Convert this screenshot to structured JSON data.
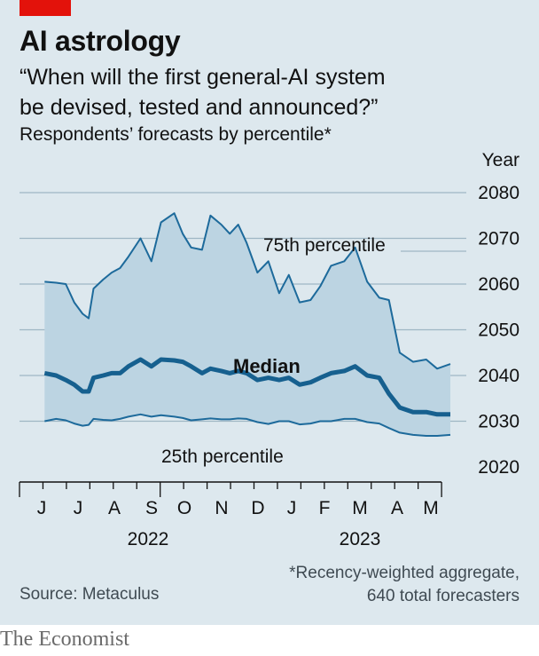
{
  "header": {
    "title": "AI astrology",
    "subtitle_line1": "“When will the first general-AI system",
    "subtitle_line2": "be devised, tested and announced?”",
    "note": "Respondents’ forecasts by percentile*",
    "unit": "Year"
  },
  "footer": {
    "source": "Source: Metaculus",
    "footnote_line1": "*Recency-weighted aggregate,",
    "footnote_line2": "640 total forecasters",
    "brand": "The Economist"
  },
  "colors": {
    "accent": "#e3120b",
    "panel": "#dde8ee",
    "band": "#bcd4e2",
    "line": "#1d6a9b",
    "median": "#16608f",
    "grid": "#9fb6c4"
  },
  "chart_data": {
    "type": "line",
    "title": "AI astrology",
    "ylabel": "Year",
    "ylim": [
      2020,
      2080
    ],
    "yticks": [
      2020,
      2030,
      2040,
      2050,
      2060,
      2070,
      2080
    ],
    "grid": true,
    "months": [
      "J",
      "J",
      "A",
      "S",
      "O",
      "N",
      "D",
      "J",
      "F",
      "M",
      "A",
      "M"
    ],
    "years": [
      "2022",
      "2023"
    ],
    "annotations": {
      "p75": "75th percentile",
      "median": "Median",
      "p25": "25th percentile"
    },
    "series": [
      {
        "name": "75th percentile",
        "points": [
          [
            0.12,
            2060.5
          ],
          [
            0.6,
            2060.3
          ],
          [
            1.0,
            2060.0
          ],
          [
            1.35,
            2056
          ],
          [
            1.7,
            2053.5
          ],
          [
            1.95,
            2052.5
          ],
          [
            2.15,
            2059
          ],
          [
            2.55,
            2061
          ],
          [
            2.9,
            2062.5
          ],
          [
            3.25,
            2063.5
          ],
          [
            3.6,
            2066
          ],
          [
            4.1,
            2070
          ],
          [
            4.55,
            2065
          ],
          [
            4.95,
            2073.5
          ],
          [
            5.5,
            2075.5
          ],
          [
            5.85,
            2071
          ],
          [
            6.2,
            2068
          ],
          [
            6.65,
            2067.5
          ],
          [
            7.0,
            2075
          ],
          [
            7.45,
            2073
          ],
          [
            7.8,
            2071
          ],
          [
            8.15,
            2073
          ],
          [
            8.5,
            2069
          ],
          [
            8.95,
            2062.5
          ],
          [
            9.4,
            2065
          ],
          [
            9.85,
            2058
          ],
          [
            10.25,
            2062
          ],
          [
            10.7,
            2056
          ],
          [
            11.15,
            2056.5
          ],
          [
            11.55,
            2059.5
          ],
          [
            12.0,
            2064
          ],
          [
            12.55,
            2065
          ],
          [
            13.0,
            2068
          ],
          [
            13.5,
            2060.5
          ],
          [
            14.0,
            2057
          ],
          [
            14.4,
            2056.5
          ],
          [
            14.85,
            2045
          ],
          [
            15.4,
            2043
          ],
          [
            15.95,
            2043.5
          ],
          [
            16.4,
            2041.5
          ],
          [
            16.95,
            2042.5
          ]
        ]
      },
      {
        "name": "Median",
        "points": [
          [
            0.12,
            2040.5
          ],
          [
            0.6,
            2040
          ],
          [
            1.0,
            2039
          ],
          [
            1.35,
            2038
          ],
          [
            1.7,
            2036.5
          ],
          [
            1.95,
            2036.5
          ],
          [
            2.15,
            2039.5
          ],
          [
            2.55,
            2040
          ],
          [
            2.9,
            2040.5
          ],
          [
            3.25,
            2040.5
          ],
          [
            3.6,
            2042
          ],
          [
            4.1,
            2043.5
          ],
          [
            4.55,
            2042
          ],
          [
            4.95,
            2043.5
          ],
          [
            5.5,
            2043.3
          ],
          [
            5.85,
            2043
          ],
          [
            6.2,
            2042
          ],
          [
            6.65,
            2040.5
          ],
          [
            7.0,
            2041.5
          ],
          [
            7.45,
            2041
          ],
          [
            7.8,
            2040.5
          ],
          [
            8.15,
            2041
          ],
          [
            8.5,
            2040.5
          ],
          [
            8.95,
            2039
          ],
          [
            9.4,
            2039.5
          ],
          [
            9.85,
            2039
          ],
          [
            10.25,
            2039.5
          ],
          [
            10.7,
            2038
          ],
          [
            11.15,
            2038.5
          ],
          [
            11.55,
            2039.5
          ],
          [
            12.0,
            2040.5
          ],
          [
            12.55,
            2041
          ],
          [
            13.0,
            2042
          ],
          [
            13.5,
            2040
          ],
          [
            14.0,
            2039.5
          ],
          [
            14.4,
            2036
          ],
          [
            14.85,
            2033
          ],
          [
            15.4,
            2032
          ],
          [
            15.95,
            2032
          ],
          [
            16.4,
            2031.5
          ],
          [
            16.95,
            2031.5
          ]
        ]
      },
      {
        "name": "25th percentile",
        "points": [
          [
            0.12,
            2030
          ],
          [
            0.6,
            2030.5
          ],
          [
            1.0,
            2030.2
          ],
          [
            1.35,
            2029.5
          ],
          [
            1.7,
            2029
          ],
          [
            1.95,
            2029.2
          ],
          [
            2.15,
            2030.5
          ],
          [
            2.55,
            2030.3
          ],
          [
            2.9,
            2030.2
          ],
          [
            3.25,
            2030.5
          ],
          [
            3.6,
            2031
          ],
          [
            4.1,
            2031.5
          ],
          [
            4.55,
            2031
          ],
          [
            4.95,
            2031.3
          ],
          [
            5.5,
            2031
          ],
          [
            5.85,
            2030.7
          ],
          [
            6.2,
            2030.2
          ],
          [
            6.65,
            2030.4
          ],
          [
            7.0,
            2030.6
          ],
          [
            7.45,
            2030.4
          ],
          [
            7.8,
            2030.4
          ],
          [
            8.15,
            2030.6
          ],
          [
            8.5,
            2030.5
          ],
          [
            8.95,
            2029.8
          ],
          [
            9.4,
            2029.4
          ],
          [
            9.85,
            2030
          ],
          [
            10.25,
            2030
          ],
          [
            10.7,
            2029.3
          ],
          [
            11.15,
            2029.5
          ],
          [
            11.55,
            2030
          ],
          [
            12.0,
            2030
          ],
          [
            12.55,
            2030.5
          ],
          [
            13.0,
            2030.5
          ],
          [
            13.5,
            2029.8
          ],
          [
            14.0,
            2029.5
          ],
          [
            14.4,
            2028.5
          ],
          [
            14.85,
            2027.5
          ],
          [
            15.4,
            2027
          ],
          [
            15.95,
            2026.8
          ],
          [
            16.4,
            2026.8
          ],
          [
            16.95,
            2027
          ]
        ]
      }
    ]
  }
}
